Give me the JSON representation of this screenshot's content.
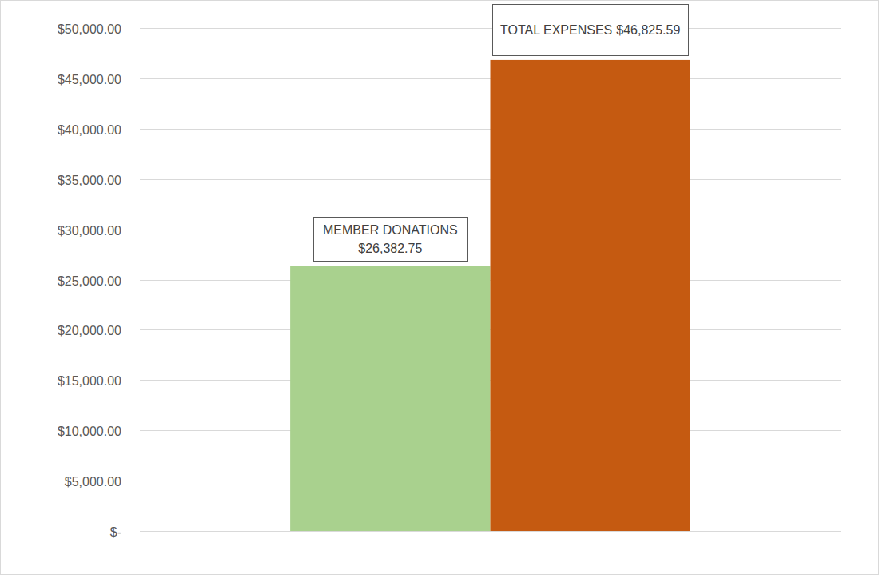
{
  "chart_data": {
    "type": "bar",
    "categories": [
      "MEMBER DONATIONS",
      "TOTAL EXPENSES"
    ],
    "values": [
      26382.75,
      46825.59
    ],
    "value_labels": [
      "$26,382.75",
      "$46,825.59"
    ],
    "colors": [
      "#a9d18e",
      "#c55a11"
    ],
    "ylim": [
      0,
      50000
    ],
    "yticks": [
      {
        "value": 0,
        "label": "$-"
      },
      {
        "value": 5000,
        "label": "$5,000.00"
      },
      {
        "value": 10000,
        "label": "$10,000.00"
      },
      {
        "value": 15000,
        "label": "$15,000.00"
      },
      {
        "value": 20000,
        "label": "$20,000.00"
      },
      {
        "value": 25000,
        "label": "$25,000.00"
      },
      {
        "value": 30000,
        "label": "$30,000.00"
      },
      {
        "value": 35000,
        "label": "$35,000.00"
      },
      {
        "value": 40000,
        "label": "$40,000.00"
      },
      {
        "value": 45000,
        "label": "$45,000.00"
      },
      {
        "value": 50000,
        "label": "$50,000.00"
      }
    ],
    "grid": true,
    "data_labels": true,
    "tick_labels": "y"
  }
}
